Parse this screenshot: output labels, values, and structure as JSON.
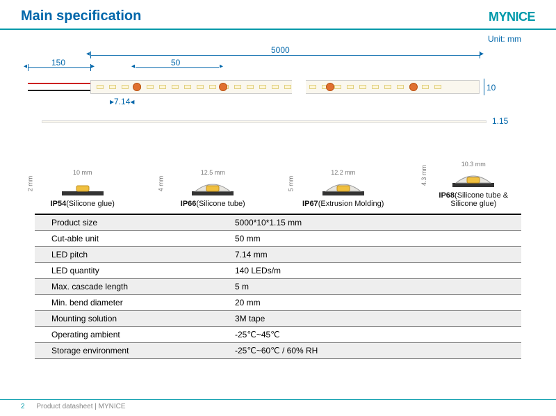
{
  "brand": "MYNICE",
  "title": "Main specification",
  "unit_label": "Unit: mm",
  "colors": {
    "accent": "#0099aa",
    "heading": "#0066aa",
    "dim": "#0066aa",
    "strip_bg": "#faf7ee",
    "led_fill": "#fff7d9",
    "cut_mark": "#e07030",
    "wire_red": "#cc2222",
    "wire_black": "#222222",
    "table_stripe": "#eeeeee"
  },
  "dimensions": {
    "total_length": "5000",
    "lead_length": "150",
    "cut_unit": "50",
    "led_pitch": "7.14",
    "strip_width": "10",
    "bare_thickness": "1.15"
  },
  "profiles": [
    {
      "code": "IP54",
      "desc": "(Silicone glue)",
      "w": "10 mm",
      "h": "2 mm"
    },
    {
      "code": "IP66",
      "desc": "(Silicone tube)",
      "w": "12.5 mm",
      "h": "4 mm"
    },
    {
      "code": "IP67",
      "desc": "(Extrusion Molding)",
      "w": "12.2 mm",
      "h": "5 mm"
    },
    {
      "code": "IP68",
      "desc": "(Silicone tube & Silicone glue)",
      "w": "10.3 mm",
      "h": "4.3 mm"
    }
  ],
  "spec_rows": [
    {
      "k": "Product size",
      "v": "5000*10*1.15 mm"
    },
    {
      "k": "Cut-able unit",
      "v": "50 mm"
    },
    {
      "k": "LED pitch",
      "v": "7.14 mm"
    },
    {
      "k": "LED quantity",
      "v": "140 LEDs/m"
    },
    {
      "k": "Max. cascade length",
      "v": "5 m"
    },
    {
      "k": "Min. bend diameter",
      "v": "20 mm"
    },
    {
      "k": "Mounting solution",
      "v": "3M tape"
    },
    {
      "k": "Operating ambient",
      "v": "-25℃~45℃"
    },
    {
      "k": "Storage environment",
      "v": "-25℃~60℃ / 60% RH"
    }
  ],
  "footer": {
    "page": "2",
    "text": "Product datasheet | MYNICE"
  }
}
